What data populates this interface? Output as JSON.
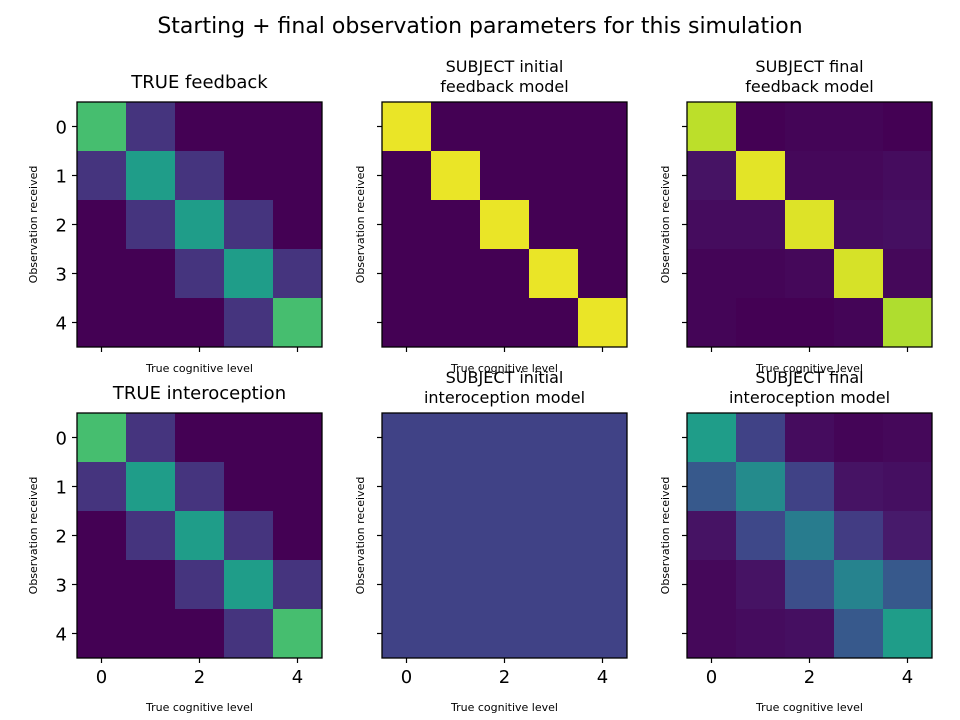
{
  "figure": {
    "title": "Starting + final observation parameters for this simulation"
  },
  "colormap": {
    "name": "viridis",
    "stops": [
      "#440154",
      "#482878",
      "#3e4989",
      "#31688e",
      "#26828e",
      "#1f9e89",
      "#35b779",
      "#6ece58",
      "#b5de2b",
      "#fde725"
    ]
  },
  "chart_data": [
    {
      "type": "heatmap",
      "title": "TRUE feedback",
      "xlabel": "True cognitive level",
      "ylabel": "Observation received",
      "x_ticks": [
        "0",
        "2",
        "4"
      ],
      "y_ticks": [
        "0",
        "1",
        "2",
        "3",
        "4"
      ],
      "show_x_ticklabels": false,
      "show_y_ticklabels": true,
      "vmin": 0,
      "vmax": 1,
      "values": [
        [
          0.7,
          0.15,
          0.0,
          0.0,
          0.0
        ],
        [
          0.15,
          0.55,
          0.15,
          0.0,
          0.0
        ],
        [
          0.0,
          0.15,
          0.55,
          0.15,
          0.0
        ],
        [
          0.0,
          0.0,
          0.15,
          0.55,
          0.15
        ],
        [
          0.0,
          0.0,
          0.0,
          0.15,
          0.7
        ]
      ]
    },
    {
      "type": "heatmap",
      "title": "SUBJECT initial\nfeedback model",
      "xlabel": "True cognitive level",
      "ylabel": "Observation received",
      "x_ticks": [
        "0",
        "2",
        "4"
      ],
      "y_ticks": [
        "0",
        "1",
        "2",
        "3",
        "4"
      ],
      "show_x_ticklabels": false,
      "show_y_ticklabels": false,
      "vmin": 0,
      "vmax": 1,
      "values": [
        [
          0.97,
          0.0,
          0.0,
          0.0,
          0.0
        ],
        [
          0.0,
          0.97,
          0.0,
          0.0,
          0.0
        ],
        [
          0.0,
          0.0,
          0.97,
          0.0,
          0.0
        ],
        [
          0.0,
          0.0,
          0.0,
          0.97,
          0.0
        ],
        [
          0.0,
          0.0,
          0.0,
          0.0,
          0.97
        ]
      ]
    },
    {
      "type": "heatmap",
      "title": "SUBJECT final\nfeedback model",
      "xlabel": "True cognitive level",
      "ylabel": "Observation received",
      "x_ticks": [
        "0",
        "2",
        "4"
      ],
      "y_ticks": [
        "0",
        "1",
        "2",
        "3",
        "4"
      ],
      "show_x_ticklabels": false,
      "show_y_ticklabels": false,
      "vmin": 0,
      "vmax": 1,
      "values": [
        [
          0.9,
          0.0,
          0.01,
          0.01,
          0.0
        ],
        [
          0.05,
          0.96,
          0.02,
          0.02,
          0.03
        ],
        [
          0.03,
          0.03,
          0.95,
          0.03,
          0.04
        ],
        [
          0.01,
          0.01,
          0.02,
          0.94,
          0.02
        ],
        [
          0.01,
          0.0,
          0.0,
          0.01,
          0.88
        ]
      ]
    },
    {
      "type": "heatmap",
      "title": "TRUE interoception",
      "xlabel": "True cognitive level",
      "ylabel": "Observation received",
      "x_ticks": [
        "0",
        "2",
        "4"
      ],
      "y_ticks": [
        "0",
        "1",
        "2",
        "3",
        "4"
      ],
      "show_x_ticklabels": true,
      "show_y_ticklabels": true,
      "vmin": 0,
      "vmax": 1,
      "values": [
        [
          0.7,
          0.15,
          0.0,
          0.0,
          0.0
        ],
        [
          0.15,
          0.55,
          0.15,
          0.0,
          0.0
        ],
        [
          0.0,
          0.15,
          0.55,
          0.15,
          0.0
        ],
        [
          0.0,
          0.0,
          0.15,
          0.55,
          0.15
        ],
        [
          0.0,
          0.0,
          0.0,
          0.15,
          0.7
        ]
      ]
    },
    {
      "type": "heatmap",
      "title": "SUBJECT initial\ninteroception model",
      "xlabel": "True cognitive level",
      "ylabel": "Observation received",
      "x_ticks": [
        "0",
        "2",
        "4"
      ],
      "y_ticks": [
        "0",
        "1",
        "2",
        "3",
        "4"
      ],
      "show_x_ticklabels": true,
      "show_y_ticklabels": false,
      "vmin": 0,
      "vmax": 1,
      "values": [
        [
          0.2,
          0.2,
          0.2,
          0.2,
          0.2
        ],
        [
          0.2,
          0.2,
          0.2,
          0.2,
          0.2
        ],
        [
          0.2,
          0.2,
          0.2,
          0.2,
          0.2
        ],
        [
          0.2,
          0.2,
          0.2,
          0.2,
          0.2
        ],
        [
          0.2,
          0.2,
          0.2,
          0.2,
          0.2
        ]
      ]
    },
    {
      "type": "heatmap",
      "title": "SUBJECT final\ninteroception model",
      "xlabel": "True cognitive level",
      "ylabel": "Observation received",
      "x_ticks": [
        "0",
        "2",
        "4"
      ],
      "y_ticks": [
        "0",
        "1",
        "2",
        "3",
        "4"
      ],
      "show_x_ticklabels": true,
      "show_y_ticklabels": false,
      "vmin": 0,
      "vmax": 1,
      "values": [
        [
          0.55,
          0.2,
          0.03,
          0.01,
          0.02
        ],
        [
          0.28,
          0.48,
          0.2,
          0.05,
          0.04
        ],
        [
          0.05,
          0.22,
          0.42,
          0.18,
          0.07
        ],
        [
          0.02,
          0.05,
          0.24,
          0.45,
          0.28
        ],
        [
          0.02,
          0.03,
          0.04,
          0.28,
          0.55
        ]
      ]
    }
  ]
}
